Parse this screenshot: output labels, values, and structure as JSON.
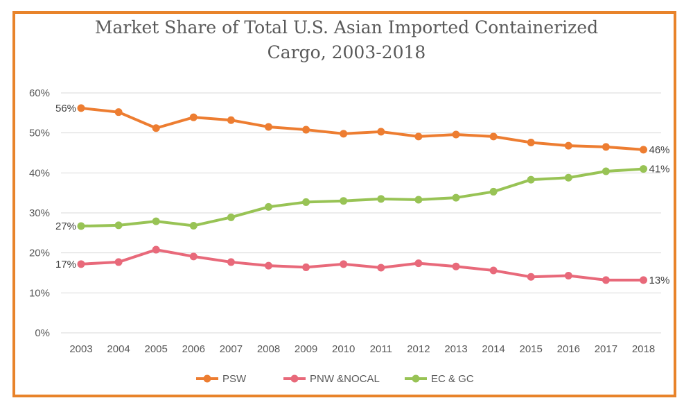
{
  "chart_data": {
    "type": "line",
    "title_line1": "Market Share of Total U.S. Asian Imported Containerized",
    "title_line2": "Cargo, 2003-2018",
    "categories": [
      "2003",
      "2004",
      "2005",
      "2006",
      "2007",
      "2008",
      "2009",
      "2010",
      "2011",
      "2012",
      "2013",
      "2014",
      "2015",
      "2016",
      "2017",
      "2018"
    ],
    "ylim": [
      0,
      60
    ],
    "yticks": [
      "0%",
      "10%",
      "20%",
      "30%",
      "40%",
      "50%",
      "60%"
    ],
    "grid": true,
    "legend_position": "bottom",
    "series": [
      {
        "name": "PSW",
        "color": "#ed7d31",
        "values": [
          56.2,
          55.2,
          51.2,
          53.9,
          53.2,
          51.5,
          50.8,
          49.8,
          50.3,
          49.1,
          49.6,
          49.1,
          47.6,
          46.8,
          46.5,
          45.8
        ],
        "first_label": "56%",
        "last_label": "46%"
      },
      {
        "name": "PNW &NOCAL",
        "color": "#e8697a",
        "values": [
          17.2,
          17.7,
          20.8,
          19.1,
          17.7,
          16.8,
          16.4,
          17.2,
          16.3,
          17.4,
          16.6,
          15.6,
          14.0,
          14.3,
          13.2,
          13.2
        ],
        "first_label": "17%",
        "last_label": "13%"
      },
      {
        "name": "EC & GC",
        "color": "#98c355",
        "values": [
          26.7,
          26.9,
          27.9,
          26.8,
          28.9,
          31.5,
          32.7,
          33.0,
          33.5,
          33.3,
          33.8,
          35.3,
          38.3,
          38.8,
          40.4,
          41.0
        ],
        "first_label": "27%",
        "last_label": "41%"
      }
    ]
  }
}
